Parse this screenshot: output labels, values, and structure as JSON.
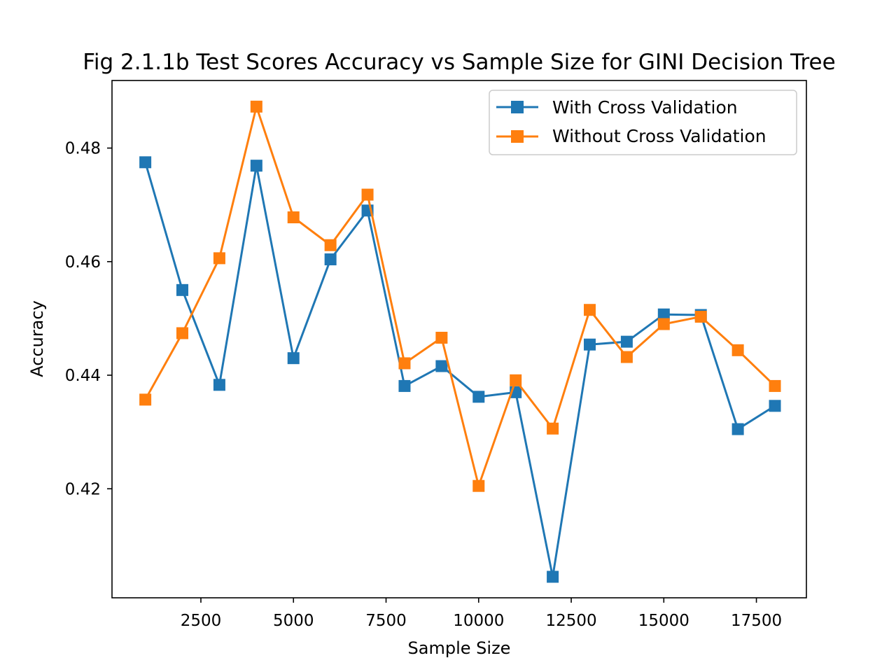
{
  "chart_data": {
    "type": "line",
    "title": "Fig 2.1.1b Test Scores Accuracy vs Sample Size for GINI Decision Tree",
    "xlabel": "Sample Size",
    "ylabel": "Accuracy",
    "xlim": [
      100,
      18850
    ],
    "ylim": [
      0.4008,
      0.4919
    ],
    "xticks": [
      2500,
      5000,
      7500,
      10000,
      12500,
      15000,
      17500
    ],
    "yticks": [
      0.42,
      0.44,
      0.46,
      0.48
    ],
    "grid": false,
    "legend_position": "upper right",
    "x": [
      1000,
      2000,
      3000,
      4000,
      5000,
      6000,
      7000,
      8000,
      9000,
      10000,
      11000,
      12000,
      13000,
      14000,
      15000,
      16000,
      17000,
      18000
    ],
    "series": [
      {
        "name": "With Cross Validation",
        "color": "#1f77b4",
        "marker": "square",
        "values": [
          0.4775,
          0.455,
          0.4383,
          0.4769,
          0.443,
          0.4604,
          0.469,
          0.4381,
          0.4416,
          0.4362,
          0.437,
          0.4045,
          0.4454,
          0.4459,
          0.4507,
          0.4506,
          0.4305,
          0.4346
        ]
      },
      {
        "name": "Without Cross Validation",
        "color": "#ff7f0e",
        "marker": "square",
        "values": [
          0.4357,
          0.4474,
          0.4606,
          0.4873,
          0.4678,
          0.4629,
          0.4718,
          0.4421,
          0.4466,
          0.4205,
          0.4391,
          0.4306,
          0.4515,
          0.4432,
          0.449,
          0.4503,
          0.4444,
          0.4381
        ]
      }
    ]
  }
}
